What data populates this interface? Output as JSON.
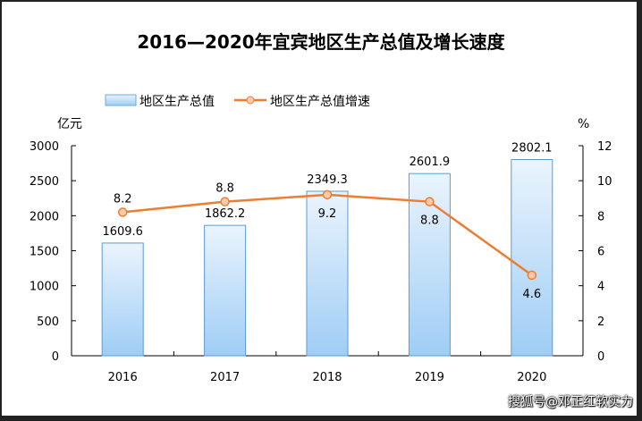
{
  "chart_data": {
    "type": "bar+line",
    "title": "2016—2020年宜宾地区生产总值及增长速度",
    "categories": [
      "2016",
      "2017",
      "2018",
      "2019",
      "2020"
    ],
    "series": [
      {
        "name": "地区生产总值",
        "type": "bar",
        "axis": "left",
        "values": [
          1609.6,
          1862.2,
          2349.3,
          2601.9,
          2802.1
        ],
        "labels": [
          "1609.6",
          "1862.2",
          "2349.3",
          "2601.9",
          "2802.1"
        ],
        "color": "#9fcdf5"
      },
      {
        "name": "地区生产总值增速",
        "type": "line",
        "axis": "right",
        "values": [
          8.2,
          8.8,
          9.2,
          8.8,
          4.6
        ],
        "labels": [
          "8.2",
          "8.8",
          "9.2",
          "8.8",
          "4.6"
        ],
        "color": "#ed7d31"
      }
    ],
    "ylabel_left": "亿元",
    "ylabel_right": "%",
    "ylim_left": [
      0,
      3000
    ],
    "yticks_left": [
      "0",
      "500",
      "1000",
      "1500",
      "2000",
      "2500",
      "3000"
    ],
    "ylim_right": [
      0,
      12
    ],
    "yticks_right": [
      "0",
      "2",
      "4",
      "6",
      "8",
      "10",
      "12"
    ],
    "legend_position": "top",
    "grid": false
  },
  "watermark": "搜狐号@邓正红软实力"
}
